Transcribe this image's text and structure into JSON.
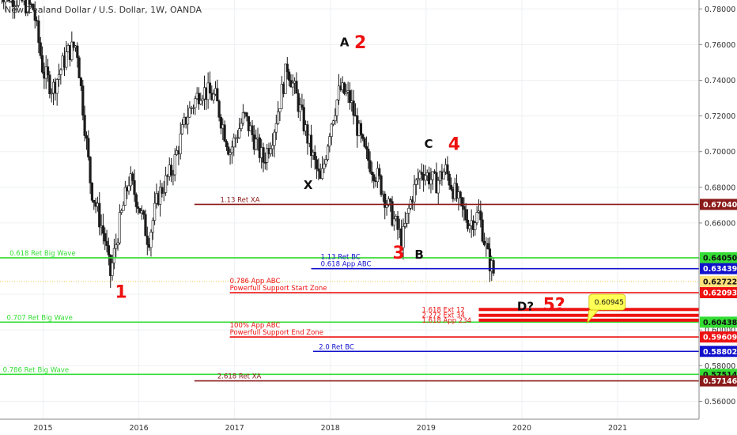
{
  "title": "New Zealand Dollar / U.S. Dollar, 1W, OANDA",
  "colors": {
    "up": "#ffffff",
    "down": "#1a1a1a",
    "wick": "#1a1a1a",
    "green": "#33dd33",
    "blue": "#1111cc",
    "darkred": "#8b1a1a",
    "red": "#ee1111",
    "yellow": "#ffff55",
    "label_black": "#111111"
  },
  "chart_data": {
    "type": "candlestick",
    "ylim": [
      0.55,
      0.785
    ],
    "xlim": [
      2014.55,
      2021.85
    ],
    "x_ticks": [
      {
        "x": 2015,
        "label": "2015"
      },
      {
        "x": 2016,
        "label": "2016"
      },
      {
        "x": 2017,
        "label": "2017"
      },
      {
        "x": 2018,
        "label": "2018"
      },
      {
        "x": 2019,
        "label": "2019"
      },
      {
        "x": 2020,
        "label": "2020"
      },
      {
        "x": 2021,
        "label": "2021"
      }
    ],
    "y_ticks": [
      "0.78000",
      "0.76000",
      "0.74000",
      "0.72000",
      "0.70000",
      "0.68000",
      "0.66000",
      "0.64000",
      "0.62000",
      "0.60000",
      "0.58000",
      "0.56000"
    ],
    "price_path": [
      [
        2014.55,
        0.79
      ],
      [
        2014.75,
        0.785
      ],
      [
        2014.9,
        0.78
      ],
      [
        2015.0,
        0.745
      ],
      [
        2015.1,
        0.735
      ],
      [
        2015.25,
        0.755
      ],
      [
        2015.35,
        0.76
      ],
      [
        2015.5,
        0.68
      ],
      [
        2015.65,
        0.65
      ],
      [
        2015.7,
        0.63
      ],
      [
        2015.8,
        0.66
      ],
      [
        2015.9,
        0.685
      ],
      [
        2016.0,
        0.67
      ],
      [
        2016.1,
        0.65
      ],
      [
        2016.2,
        0.675
      ],
      [
        2016.35,
        0.69
      ],
      [
        2016.5,
        0.72
      ],
      [
        2016.65,
        0.735
      ],
      [
        2016.8,
        0.73
      ],
      [
        2016.95,
        0.7
      ],
      [
        2017.1,
        0.72
      ],
      [
        2017.3,
        0.695
      ],
      [
        2017.4,
        0.71
      ],
      [
        2017.55,
        0.748
      ],
      [
        2017.65,
        0.73
      ],
      [
        2017.8,
        0.7
      ],
      [
        2017.9,
        0.682
      ],
      [
        2018.0,
        0.715
      ],
      [
        2018.1,
        0.735
      ],
      [
        2018.2,
        0.73
      ],
      [
        2018.35,
        0.7
      ],
      [
        2018.5,
        0.685
      ],
      [
        2018.6,
        0.67
      ],
      [
        2018.75,
        0.65
      ],
      [
        2018.85,
        0.675
      ],
      [
        2018.95,
        0.69
      ],
      [
        2019.1,
        0.682
      ],
      [
        2019.2,
        0.69
      ],
      [
        2019.35,
        0.67
      ],
      [
        2019.45,
        0.66
      ],
      [
        2019.55,
        0.665
      ],
      [
        2019.65,
        0.64
      ],
      [
        2019.72,
        0.63
      ]
    ],
    "levels": [
      {
        "label": "1.13 Ret XA",
        "y": 0.6704,
        "x0": 2016.58,
        "color": "darkred",
        "label_x": 2016.85,
        "tag": "0.67040"
      },
      {
        "label": "0.618 Ret Big Wave",
        "y": 0.6405,
        "x0": 2014.55,
        "color": "green",
        "label_x": 2014.65,
        "tag": "0.64050"
      },
      {
        "label": "1.13 Ret BC",
        "label2": "0.618 App ABC",
        "y": 0.63439,
        "x0": 2017.8,
        "color": "blue",
        "label_x": 2017.9,
        "tag": "0.63439"
      },
      {
        "label": "0.786 App ABC",
        "label2": "Powerfull Support Start Zone",
        "y": 0.62093,
        "x0": 2016.95,
        "color": "red",
        "label_x": 2016.95,
        "tag": "0.62093"
      },
      {
        "label": "0.707 Ret Big Wave",
        "y": 0.60438,
        "x0": 2014.55,
        "color": "green",
        "label_x": 2014.62,
        "tag": "0.60438"
      },
      {
        "label": "100% App ABC",
        "label2": "Powerfull Support End Zone",
        "y": 0.59609,
        "x0": 2016.95,
        "color": "red",
        "label_x": 2016.95,
        "tag": "0.59609"
      },
      {
        "label": "2.0 Ret BC",
        "y": 0.58802,
        "x0": 2017.82,
        "color": "blue",
        "label_x": 2017.88,
        "tag": "0.58802"
      },
      {
        "label": "0.786 Ret Big Wave",
        "y": 0.57514,
        "x0": 2014.52,
        "color": "green",
        "label_x": 2014.58,
        "tag": "0.57514"
      },
      {
        "label": "2.618 Ret XA",
        "y": 0.57146,
        "x0": 2016.58,
        "color": "darkred",
        "label_x": 2016.82,
        "tag": "0.57146"
      }
    ],
    "current_price": {
      "y": 0.62722,
      "tag": "0.62722"
    },
    "ext_zone": {
      "y": [
        0.6115,
        0.6082,
        0.6055
      ],
      "x0": 2019.55,
      "labels": [
        "1.618 Ext 12",
        "2.272 Ext 34",
        "1.618 App 234"
      ]
    },
    "callout": {
      "text": "0.60945",
      "x": 2020.75,
      "y": 0.6165
    },
    "annotations": [
      {
        "text": "1",
        "x": 2015.75,
        "y": 0.618,
        "color": "red",
        "size": 22
      },
      {
        "text": "2",
        "x": 2018.25,
        "y": 0.758,
        "color": "red",
        "size": 22
      },
      {
        "text": "3",
        "x": 2018.65,
        "y": 0.64,
        "color": "red",
        "size": 22
      },
      {
        "text": "4",
        "x": 2019.23,
        "y": 0.701,
        "color": "red",
        "size": 22
      },
      {
        "text": "5?",
        "x": 2020.22,
        "y": 0.611,
        "color": "red",
        "size": 22
      },
      {
        "text": "A",
        "x": 2018.1,
        "y": 0.759,
        "color": "label_black",
        "size": 15
      },
      {
        "text": "B",
        "x": 2018.88,
        "y": 0.64,
        "color": "label_black",
        "size": 15
      },
      {
        "text": "C",
        "x": 2018.98,
        "y": 0.702,
        "color": "label_black",
        "size": 15
      },
      {
        "text": "D?",
        "x": 2019.95,
        "y": 0.611,
        "color": "label_black",
        "size": 15
      },
      {
        "text": "X",
        "x": 2017.72,
        "y": 0.679,
        "color": "label_black",
        "size": 15
      }
    ]
  }
}
